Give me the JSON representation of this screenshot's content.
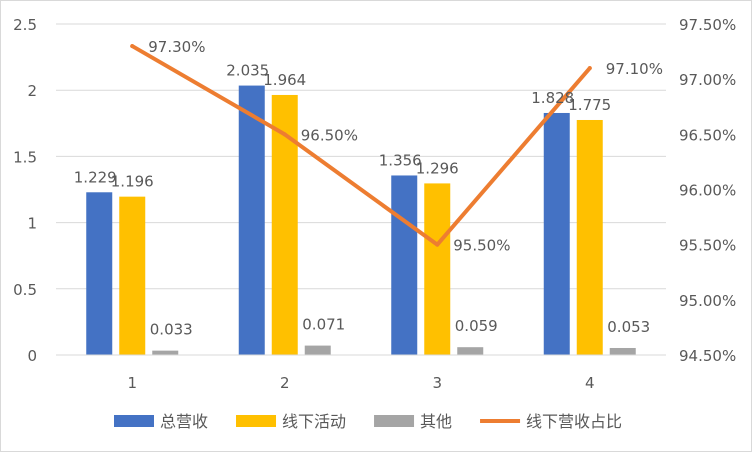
{
  "chart_data": {
    "type": "bar+line",
    "categories": [
      "1",
      "2",
      "3",
      "4"
    ],
    "series": [
      {
        "name": "总营收",
        "type": "bar",
        "axis": "left",
        "color": "#4472C4",
        "values": [
          1.229,
          2.035,
          1.356,
          1.828
        ],
        "labels": [
          "1.229",
          "2.035",
          "1.356",
          "1.828"
        ]
      },
      {
        "name": "线下活动",
        "type": "bar",
        "axis": "left",
        "color": "#FFC000",
        "values": [
          1.196,
          1.964,
          1.296,
          1.775
        ],
        "labels": [
          "1.196",
          "1.964",
          "1.296",
          "1.775"
        ]
      },
      {
        "name": "其他",
        "type": "bar",
        "axis": "left",
        "color": "#A5A5A5",
        "values": [
          0.033,
          0.071,
          0.059,
          0.053
        ],
        "labels": [
          "0.033",
          "0.071",
          "0.059",
          "0.053"
        ]
      },
      {
        "name": "线下营收占比",
        "type": "line",
        "axis": "right",
        "color": "#ED7D31",
        "values": [
          97.3,
          96.5,
          95.5,
          97.1
        ],
        "labels": [
          "97.30%",
          "96.50%",
          "95.50%",
          "97.10%"
        ]
      }
    ],
    "y_left": {
      "min": 0,
      "max": 2.5,
      "ticks": [
        "0",
        "0.5",
        "1",
        "1.5",
        "2",
        "2.5"
      ]
    },
    "y_right": {
      "min": 94.5,
      "max": 97.5,
      "ticks": [
        "94.50%",
        "95.00%",
        "95.50%",
        "96.00%",
        "96.50%",
        "97.00%",
        "97.50%"
      ]
    },
    "grid": true,
    "legend_position": "bottom"
  }
}
